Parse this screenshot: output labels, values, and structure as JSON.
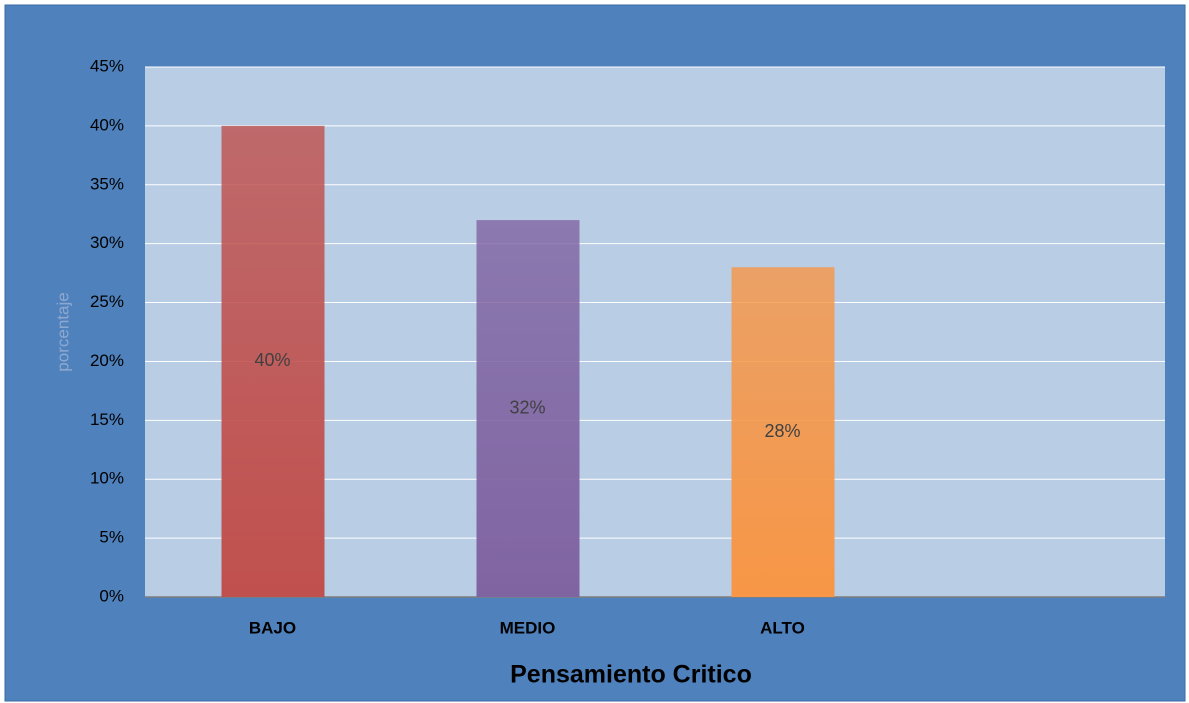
{
  "chart_data": {
    "type": "bar",
    "categories": [
      "BAJO",
      "MEDIO",
      "ALTO",
      null
    ],
    "values": [
      40,
      32,
      28,
      null
    ],
    "value_labels": [
      "40%",
      "32%",
      "28%",
      null
    ],
    "colors": [
      "#c0504d",
      "#8064a2",
      "#f79646",
      null
    ],
    "ylim": [
      0,
      45
    ],
    "yticks": [
      {
        "value": 0,
        "label": "0%"
      },
      {
        "value": 5,
        "label": "5%"
      },
      {
        "value": 10,
        "label": "10%"
      },
      {
        "value": 15,
        "label": "15%"
      },
      {
        "value": 20,
        "label": "20%"
      },
      {
        "value": 25,
        "label": "25%"
      },
      {
        "value": 30,
        "label": "30%"
      },
      {
        "value": 35,
        "label": "35%"
      },
      {
        "value": 40,
        "label": "40%"
      },
      {
        "value": 45,
        "label": "45%"
      }
    ],
    "ylabel": "porcentaje",
    "xlabel": "Pensamiento Critico",
    "grid": true
  }
}
